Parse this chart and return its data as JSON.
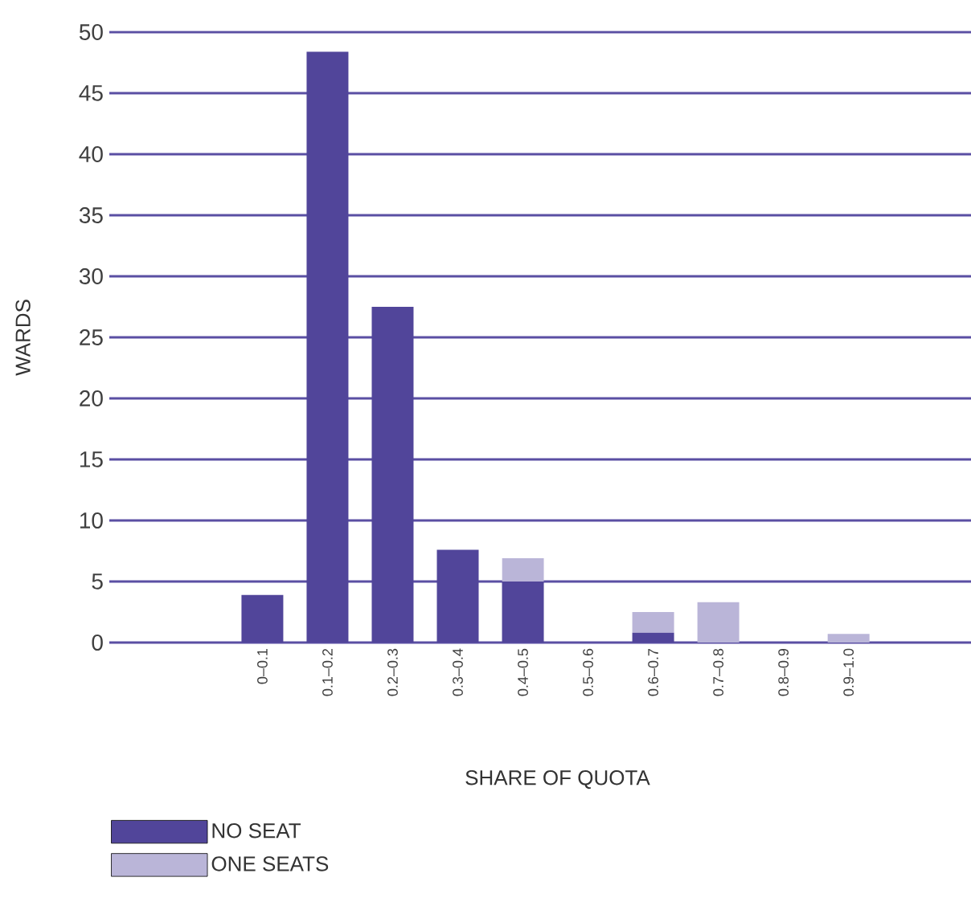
{
  "chart_data": {
    "type": "bar",
    "stacked": true,
    "xlabel": "SHARE OF QUOTA",
    "ylabel": "WARDS",
    "categories": [
      "0–0.1",
      "0.1–0.2",
      "0.2–0.3",
      "0.3–0.4",
      "0.4–0.5",
      "0.5–0.6",
      "0.6–0.7",
      "0.7–0.8",
      "0.8–0.9",
      "0.9–1.0"
    ],
    "series": [
      {
        "name": "NO SEAT",
        "color": "#51459a",
        "values": [
          3.9,
          48.4,
          27.5,
          7.6,
          5,
          0,
          0.8,
          0,
          0,
          0
        ]
      },
      {
        "name": "ONE SEATS",
        "color": "#bab5d8",
        "values": [
          0,
          0,
          0,
          0,
          1.9,
          0,
          1.7,
          3.3,
          0,
          0.7
        ]
      }
    ],
    "ylim": [
      0,
      50
    ],
    "yticks": [
      0,
      5,
      10,
      15,
      20,
      25,
      30,
      35,
      40,
      45,
      50
    ],
    "grid": "y",
    "legend": "bottom left"
  }
}
